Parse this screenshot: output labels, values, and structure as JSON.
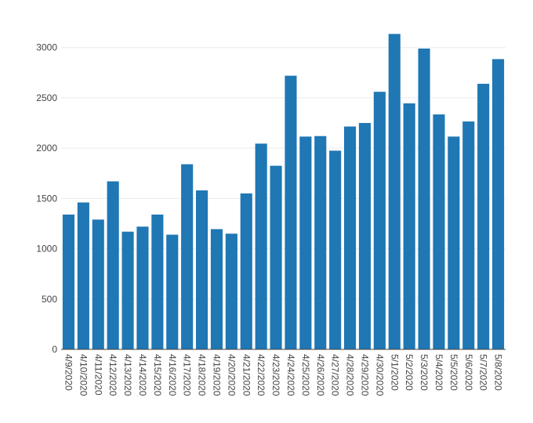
{
  "chart_data": {
    "type": "bar",
    "title": "",
    "xlabel": "",
    "ylabel": "",
    "categories": [
      "4/9/2020",
      "4/10/2020",
      "4/11/2020",
      "4/12/2020",
      "4/13/2020",
      "4/14/2020",
      "4/15/2020",
      "4/16/2020",
      "4/17/2020",
      "4/18/2020",
      "4/19/2020",
      "4/20/2020",
      "4/21/2020",
      "4/22/2020",
      "4/23/2020",
      "4/24/2020",
      "4/25/2020",
      "4/26/2020",
      "4/27/2020",
      "4/28/2020",
      "4/29/2020",
      "4/30/2020",
      "5/1/2020",
      "5/2/2020",
      "5/3/2020",
      "5/4/2020",
      "5/5/2020",
      "5/6/2020",
      "5/7/2020",
      "5/8/2020"
    ],
    "values": [
      1340,
      1460,
      1290,
      1670,
      1170,
      1220,
      1340,
      1140,
      1840,
      1580,
      1195,
      1150,
      1550,
      2045,
      1825,
      2720,
      2115,
      2120,
      1975,
      2215,
      2250,
      2560,
      3135,
      2445,
      2990,
      2335,
      2115,
      2265,
      2640,
      2885
    ],
    "ylim": [
      0,
      3200
    ],
    "yticks": [
      0,
      500,
      1000,
      1500,
      2000,
      2500,
      3000
    ],
    "bar_color": "#1f77b4",
    "grid": true,
    "gridline_color": "#ebebeb",
    "axis_color": "#444444",
    "tick_label_color": "#444444",
    "legend": "none"
  }
}
